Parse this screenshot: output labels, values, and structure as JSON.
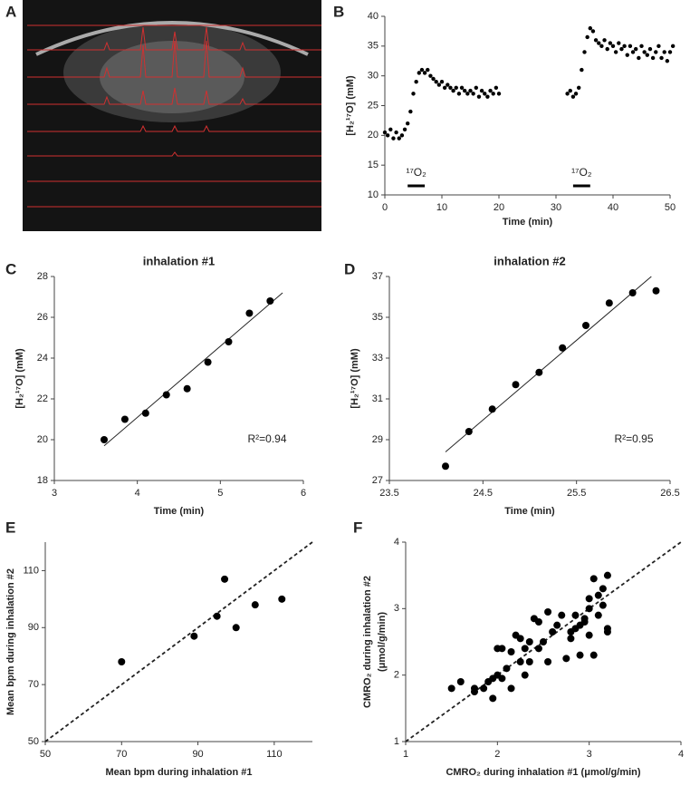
{
  "chart_data": [
    {
      "type": "image",
      "panel": "A"
    },
    {
      "type": "scatter",
      "panel": "B",
      "xlabel": "Time (min)",
      "ylabel": "[H₂¹⁷O]  (mM)",
      "xlim": [
        0,
        50
      ],
      "xticks": [
        0,
        10,
        20,
        30,
        40,
        50
      ],
      "ylim": [
        10,
        40
      ],
      "yticks": [
        10,
        15,
        20,
        25,
        30,
        35,
        40
      ],
      "color": "#000000",
      "x": [
        0,
        0.5,
        1,
        1.5,
        2,
        2.5,
        3,
        3.5,
        4,
        4.5,
        5,
        5.5,
        6,
        6.5,
        7,
        7.5,
        8,
        8.5,
        9,
        9.5,
        10,
        10.5,
        11,
        11.5,
        12,
        12.5,
        13,
        13.5,
        14,
        14.5,
        15,
        15.5,
        16,
        16.5,
        17,
        17.5,
        18,
        18.5,
        19,
        19.5,
        20,
        32,
        32.5,
        33,
        33.5,
        34,
        34.5,
        35,
        35.5,
        36,
        36.5,
        37,
        37.5,
        38,
        38.5,
        39,
        39.5,
        40,
        40.5,
        41,
        41.5,
        42,
        42.5,
        43,
        43.5,
        44,
        44.5,
        45,
        45.5,
        46,
        46.5,
        47,
        47.5,
        48,
        48.5,
        49,
        49.5,
        50,
        50.5
      ],
      "values": [
        20.5,
        20,
        21,
        19.5,
        20.5,
        19.5,
        20,
        21,
        22,
        24,
        27,
        29,
        30.5,
        31,
        30.5,
        31,
        30,
        29.5,
        29,
        28.5,
        29,
        28,
        28.5,
        28,
        27.5,
        28,
        27,
        28,
        27.5,
        27,
        27.5,
        27,
        28,
        26.5,
        27.5,
        27,
        26.5,
        27.5,
        27,
        28,
        27,
        27,
        27.5,
        26.5,
        27,
        28,
        31,
        34,
        36.5,
        38,
        37.5,
        36,
        35.5,
        35,
        36,
        34.5,
        35.5,
        35,
        34,
        35.5,
        34.5,
        35,
        33.5,
        35,
        34,
        34.5,
        33,
        35,
        34,
        33.5,
        34.5,
        33,
        34,
        35,
        33,
        34,
        32.5,
        34,
        35
      ],
      "annotations": [
        {
          "text": "¹⁷O₂",
          "x": [
            4,
            7
          ]
        },
        {
          "text": "¹⁷O₂",
          "x": [
            33,
            36
          ]
        }
      ]
    },
    {
      "type": "scatter",
      "panel": "C",
      "title": "inhalation #1",
      "xlabel": "Time (min)",
      "ylabel": "[H₂¹⁷O]  (mM)",
      "xlim": [
        3,
        6
      ],
      "xticks": [
        3,
        4,
        5,
        6
      ],
      "ylim": [
        18,
        28
      ],
      "yticks": [
        18,
        20,
        22,
        24,
        26,
        28
      ],
      "color": "#000000",
      "x": [
        3.6,
        3.85,
        4.1,
        4.35,
        4.6,
        4.85,
        5.1,
        5.35,
        5.6
      ],
      "values": [
        20.0,
        21.0,
        21.3,
        22.2,
        22.5,
        23.8,
        24.8,
        26.2,
        26.8
      ],
      "line": {
        "x": [
          3.6,
          5.75
        ],
        "y": [
          19.7,
          27.2
        ],
        "style": "solid"
      },
      "annotations": [
        {
          "text": "R²=0.94"
        }
      ]
    },
    {
      "type": "scatter",
      "panel": "D",
      "title": "inhalation #2",
      "xlabel": "Time (min)",
      "ylabel": "[H₂¹⁷O]  (mM)",
      "xlim": [
        23.5,
        26.5
      ],
      "xticks": [
        23.5,
        24.5,
        25.5,
        26.5
      ],
      "ylim": [
        27,
        37
      ],
      "yticks": [
        27,
        29,
        31,
        33,
        35,
        37
      ],
      "color": "#000000",
      "x": [
        24.1,
        24.35,
        24.6,
        24.85,
        25.1,
        25.35,
        25.6,
        25.85,
        26.1,
        26.35
      ],
      "values": [
        27.7,
        29.4,
        30.5,
        31.7,
        32.3,
        33.5,
        34.6,
        35.7,
        36.2,
        36.3
      ],
      "line": {
        "x": [
          24.1,
          26.3
        ],
        "y": [
          28.4,
          37.0
        ],
        "style": "solid"
      },
      "annotations": [
        {
          "text": "R²=0.95"
        }
      ]
    },
    {
      "type": "scatter",
      "panel": "E",
      "xlabel": "Mean bpm during inhalation #1",
      "ylabel": "Mean bpm during inhalation #2",
      "xlim": [
        50,
        120
      ],
      "xticks": [
        50,
        70,
        90,
        110
      ],
      "ylim": [
        50,
        120
      ],
      "yticks": [
        50,
        70,
        90,
        110
      ],
      "color": "#000000",
      "x": [
        70,
        89,
        95,
        97,
        100,
        105,
        112
      ],
      "values": [
        78,
        87,
        94,
        107,
        90,
        98,
        100
      ],
      "line": {
        "x": [
          50,
          120
        ],
        "y": [
          50,
          120
        ],
        "style": "dashed"
      }
    },
    {
      "type": "scatter",
      "panel": "F",
      "xlabel": "CMRO₂ during inhalation #1 (μmol/g/min)",
      "ylabel": [
        "CMRO₂ during inhalation #2",
        "(μmol/g/min)"
      ],
      "xlim": [
        1,
        4
      ],
      "xticks": [
        1,
        2,
        3,
        4
      ],
      "ylim": [
        1,
        4
      ],
      "yticks": [
        1,
        2,
        3,
        4
      ],
      "color": "#000000",
      "x": [
        1.5,
        1.6,
        1.75,
        1.75,
        1.85,
        1.9,
        1.95,
        1.95,
        2.0,
        2.0,
        2.05,
        2.1,
        2.15,
        2.15,
        2.2,
        2.25,
        2.25,
        2.3,
        2.3,
        2.35,
        2.35,
        2.4,
        2.45,
        2.45,
        2.5,
        2.55,
        2.55,
        2.6,
        2.65,
        2.7,
        2.75,
        2.8,
        2.8,
        2.85,
        2.85,
        2.9,
        2.9,
        2.95,
        3.0,
        3.0,
        3.0,
        3.05,
        3.05,
        3.1,
        3.1,
        3.15,
        3.15,
        3.2,
        3.2,
        3.2,
        2.95,
        2.05
      ],
      "values": [
        1.8,
        1.9,
        1.75,
        1.8,
        1.8,
        1.9,
        1.95,
        1.65,
        2.0,
        2.4,
        1.95,
        2.1,
        1.8,
        2.35,
        2.6,
        2.2,
        2.55,
        2.0,
        2.4,
        2.2,
        2.5,
        2.85,
        2.4,
        2.8,
        2.5,
        2.95,
        2.2,
        2.65,
        2.75,
        2.9,
        2.25,
        2.55,
        2.65,
        2.7,
        2.9,
        2.3,
        2.75,
        2.8,
        2.6,
        3.0,
        3.15,
        2.3,
        3.45,
        2.9,
        3.2,
        3.3,
        3.05,
        2.65,
        2.7,
        3.5,
        2.85,
        2.4
      ],
      "line": {
        "x": [
          1,
          4
        ],
        "y": [
          1,
          4
        ],
        "style": "dashed"
      }
    }
  ]
}
